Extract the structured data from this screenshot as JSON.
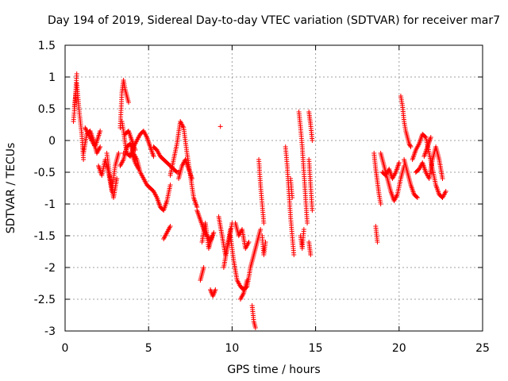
{
  "chart_data": {
    "type": "scatter",
    "title": "Day 194 of 2019, Sidereal Day-to-day VTEC variation (SDTVAR) for receiver mar7",
    "xlabel": "GPS time / hours",
    "ylabel": "SDTVAR / TECUs",
    "xlim": [
      0,
      25
    ],
    "ylim": [
      -3,
      1.5
    ],
    "xticks": [
      0,
      5,
      10,
      15,
      20,
      25
    ],
    "xtick_labels": [
      "0",
      "5",
      "10",
      "15",
      "20",
      "25"
    ],
    "yticks": [
      1.5,
      1,
      0.5,
      0,
      -0.5,
      -1,
      -1.5,
      -2,
      -2.5,
      -3
    ],
    "ytick_labels": [
      "1.5",
      "1",
      "0.5",
      "0",
      "-0.5",
      "-1",
      "-1.5",
      "-2",
      "-2.5",
      "-3"
    ],
    "grid": true,
    "marker": "+",
    "color": "#ff0000",
    "series": [
      {
        "name": "SDTVAR",
        "segments": [
          {
            "x": [
              0.55,
              0.7,
              0.85,
              1.0,
              1.1
            ],
            "y": [
              0.5,
              0.9,
              0.45,
              0.1,
              -0.3
            ]
          },
          {
            "x": [
              0.5,
              0.6,
              0.7
            ],
            "y": [
              0.3,
              0.6,
              1.05
            ]
          },
          {
            "x": [
              1.1,
              1.3,
              1.5,
              1.7,
              1.9,
              2.1
            ],
            "y": [
              -0.2,
              0.1,
              0.15,
              0.0,
              -0.2,
              -0.1
            ]
          },
          {
            "x": [
              1.2,
              1.5,
              1.8,
              2.1
            ],
            "y": [
              0.2,
              0.05,
              -0.1,
              0.15
            ]
          },
          {
            "x": [
              2.0,
              2.2,
              2.4,
              2.6,
              2.8,
              3.0,
              3.2
            ],
            "y": [
              -0.4,
              -0.55,
              -0.3,
              -0.5,
              -0.8,
              -0.4,
              -0.2
            ]
          },
          {
            "x": [
              2.5,
              2.7,
              2.9,
              3.1
            ],
            "y": [
              -0.2,
              -0.6,
              -0.9,
              -0.6
            ]
          },
          {
            "x": [
              3.3,
              3.4,
              3.5,
              3.6,
              3.7,
              3.8
            ],
            "y": [
              0.2,
              0.75,
              0.95,
              0.8,
              0.7,
              0.6
            ]
          },
          {
            "x": [
              3.4,
              3.5,
              3.6,
              3.7
            ],
            "y": [
              0.3,
              0.15,
              -0.05,
              -0.2
            ]
          },
          {
            "x": [
              3.3,
              3.5,
              3.7,
              3.9,
              4.1,
              4.3,
              4.5,
              4.7,
              4.9,
              5.1,
              5.3,
              5.5,
              5.7,
              5.9,
              6.1,
              6.3
            ],
            "y": [
              -0.4,
              -0.3,
              -0.1,
              -0.05,
              -0.2,
              -0.3,
              -0.5,
              -0.6,
              -0.7,
              -0.75,
              -0.8,
              -0.9,
              -1.05,
              -1.1,
              -0.95,
              -0.7
            ]
          },
          {
            "x": [
              3.5,
              3.7,
              3.9,
              4.1,
              4.3,
              4.5,
              4.7,
              4.9,
              5.1,
              5.3
            ],
            "y": [
              -0.2,
              -0.2,
              -0.25,
              -0.1,
              0.0,
              0.1,
              0.15,
              0.05,
              -0.1,
              -0.25
            ]
          },
          {
            "x": [
              3.6,
              3.8,
              4.0,
              4.2
            ],
            "y": [
              0.1,
              0.15,
              0.0,
              -0.15
            ]
          },
          {
            "x": [
              4.0,
              4.2,
              4.4
            ],
            "y": [
              -0.2,
              -0.35,
              -0.45
            ]
          },
          {
            "x": [
              5.3,
              5.5,
              5.7,
              5.9,
              6.1,
              6.3,
              6.5,
              6.7,
              6.9
            ],
            "y": [
              -0.1,
              -0.15,
              -0.25,
              -0.3,
              -0.35,
              -0.4,
              -0.45,
              -0.5,
              -0.5
            ]
          },
          {
            "x": [
              5.9,
              6.1,
              6.3
            ],
            "y": [
              -1.55,
              -1.45,
              -1.35
            ]
          },
          {
            "x": [
              6.3,
              6.5,
              6.7,
              6.9,
              7.1,
              7.3,
              7.5,
              7.7,
              7.9
            ],
            "y": [
              -0.55,
              -0.3,
              -0.05,
              0.3,
              0.2,
              -0.2,
              -0.55,
              -0.9,
              -1.05
            ]
          },
          {
            "x": [
              6.8,
              7.0,
              7.2,
              7.4,
              7.6
            ],
            "y": [
              -0.6,
              -0.4,
              -0.3,
              -0.45,
              -0.6
            ]
          },
          {
            "x": [
              7.9,
              8.1,
              8.3,
              8.5,
              8.7,
              8.9
            ],
            "y": [
              -1.1,
              -1.25,
              -1.4,
              -1.5,
              -1.6,
              -1.45
            ]
          },
          {
            "x": [
              8.2,
              8.4,
              8.6,
              8.8
            ],
            "y": [
              -1.6,
              -1.3,
              -1.7,
              -1.5
            ]
          },
          {
            "x": [
              8.1,
              8.3
            ],
            "y": [
              -2.2,
              -2.0
            ]
          },
          {
            "x": [
              8.7,
              8.85,
              9.0
            ],
            "y": [
              -2.35,
              -2.45,
              -2.35
            ]
          },
          {
            "x": [
              9.3
            ],
            "y": [
              0.22
            ]
          },
          {
            "x": [
              9.2,
              9.4,
              9.6,
              9.8,
              10.0
            ],
            "y": [
              -1.2,
              -1.5,
              -1.8,
              -1.6,
              -1.3
            ]
          },
          {
            "x": [
              9.5,
              9.7,
              9.9
            ],
            "y": [
              -2.0,
              -1.7,
              -1.4
            ]
          },
          {
            "x": [
              9.9,
              10.1,
              10.3,
              10.5,
              10.7,
              10.9,
              11.1,
              11.3,
              11.5,
              11.7
            ],
            "y": [
              -1.5,
              -1.9,
              -2.2,
              -2.3,
              -2.35,
              -2.3,
              -2.0,
              -1.8,
              -1.6,
              -1.4
            ]
          },
          {
            "x": [
              10.2,
              10.4,
              10.6,
              10.8,
              11.0
            ],
            "y": [
              -1.3,
              -1.5,
              -1.4,
              -1.7,
              -1.6
            ]
          },
          {
            "x": [
              10.5,
              10.7,
              10.9
            ],
            "y": [
              -2.5,
              -2.4,
              -2.2
            ]
          },
          {
            "x": [
              11.2,
              11.3,
              11.4
            ],
            "y": [
              -2.6,
              -2.85,
              -2.95
            ]
          },
          {
            "x": [
              11.6,
              11.7,
              11.8,
              11.9
            ],
            "y": [
              -0.3,
              -0.7,
              -1.0,
              -1.3
            ]
          },
          {
            "x": [
              11.8,
              11.9,
              12.0
            ],
            "y": [
              -1.5,
              -1.8,
              -1.6
            ]
          },
          {
            "x": [
              13.2,
              13.3,
              13.4,
              13.5,
              13.6,
              13.7
            ],
            "y": [
              -0.1,
              -0.4,
              -0.8,
              -1.2,
              -1.5,
              -1.8
            ]
          },
          {
            "x": [
              13.5,
              13.6
            ],
            "y": [
              -0.6,
              -0.9
            ]
          },
          {
            "x": [
              14.0,
              14.1,
              14.2,
              14.3,
              14.4,
              14.5
            ],
            "y": [
              0.45,
              0.2,
              -0.1,
              -0.5,
              -0.9,
              -1.3
            ]
          },
          {
            "x": [
              14.1,
              14.2,
              14.3
            ],
            "y": [
              -1.5,
              -1.7,
              -1.4
            ]
          },
          {
            "x": [
              14.6,
              14.7,
              14.8
            ],
            "y": [
              0.45,
              0.25,
              0.0
            ]
          },
          {
            "x": [
              14.6,
              14.7,
              14.8
            ],
            "y": [
              -0.3,
              -0.7,
              -1.1
            ]
          },
          {
            "x": [
              14.6,
              14.7
            ],
            "y": [
              -1.6,
              -1.8
            ]
          },
          {
            "x": [
              18.5,
              18.6,
              18.7,
              18.8,
              18.9
            ],
            "y": [
              -0.2,
              -0.45,
              -0.65,
              -0.85,
              -1.0
            ]
          },
          {
            "x": [
              18.6,
              18.7
            ],
            "y": [
              -1.35,
              -1.6
            ]
          },
          {
            "x": [
              18.9,
              19.1,
              19.3,
              19.5,
              19.7,
              19.9,
              20.1,
              20.3
            ],
            "y": [
              -0.2,
              -0.4,
              -0.6,
              -0.8,
              -0.95,
              -0.85,
              -0.6,
              -0.4
            ]
          },
          {
            "x": [
              19.0,
              19.2,
              19.4,
              19.6,
              19.8,
              20.0
            ],
            "y": [
              -0.5,
              -0.55,
              -0.45,
              -0.6,
              -0.5,
              -0.35
            ]
          },
          {
            "x": [
              20.1,
              20.2,
              20.3,
              20.4,
              20.5,
              20.6,
              20.7
            ],
            "y": [
              0.7,
              0.55,
              0.3,
              0.15,
              0.05,
              -0.05,
              -0.1
            ]
          },
          {
            "x": [
              20.3,
              20.5,
              20.7,
              20.9,
              21.1
            ],
            "y": [
              -0.3,
              -0.5,
              -0.7,
              -0.85,
              -0.9
            ]
          },
          {
            "x": [
              20.8,
              21.0,
              21.2,
              21.4,
              21.6,
              21.8,
              22.0,
              22.2,
              22.4,
              22.6,
              22.8
            ],
            "y": [
              -0.3,
              -0.15,
              -0.05,
              0.1,
              0.05,
              -0.2,
              -0.45,
              -0.7,
              -0.85,
              -0.9,
              -0.8
            ]
          },
          {
            "x": [
              21.0,
              21.2,
              21.4,
              21.6,
              21.8,
              22.0,
              22.2,
              22.4,
              22.6
            ],
            "y": [
              -0.5,
              -0.45,
              -0.35,
              -0.5,
              -0.6,
              -0.3,
              -0.1,
              -0.3,
              -0.6
            ]
          },
          {
            "x": [
              21.5,
              21.7,
              21.9
            ],
            "y": [
              -0.25,
              -0.1,
              0.05
            ]
          }
        ]
      }
    ]
  }
}
